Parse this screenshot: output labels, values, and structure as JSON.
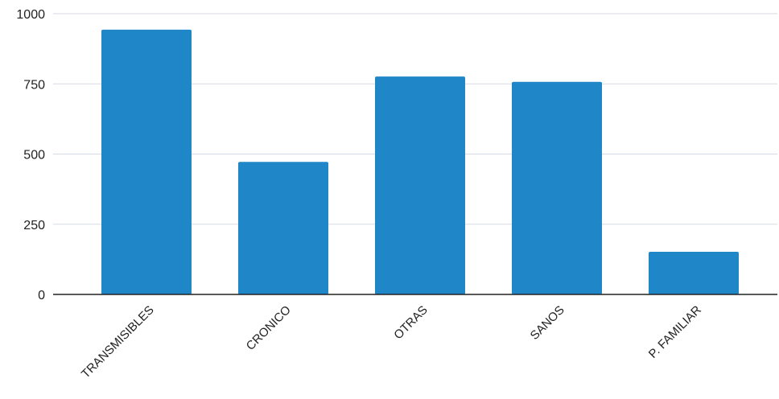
{
  "chart_data": {
    "type": "bar",
    "categories": [
      "TRANSMISIBLES",
      "CRONICO",
      "OTRAS",
      "SANOS",
      "P. FAMILIAR"
    ],
    "values": [
      943,
      472,
      776,
      757,
      152
    ],
    "ylim": [
      0,
      1000
    ],
    "yticks": [
      0,
      250,
      500,
      750,
      1000
    ],
    "grid": true,
    "legend": "none",
    "colors": {
      "bar": "#1f87c8",
      "grid": "#d5d9e6",
      "axis": "#222222"
    }
  }
}
